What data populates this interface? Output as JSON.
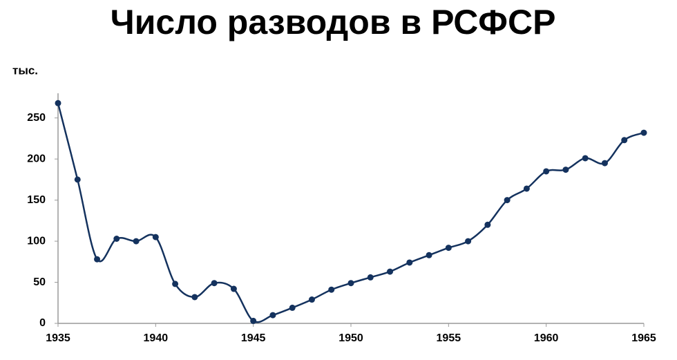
{
  "chart_data": {
    "type": "line",
    "title": "Число разводов в РСФСР",
    "y_label": "тыс.",
    "x": [
      1935,
      1936,
      1937,
      1938,
      1939,
      1940,
      1941,
      1942,
      1943,
      1944,
      1945,
      1946,
      1947,
      1948,
      1949,
      1950,
      1951,
      1952,
      1953,
      1954,
      1955,
      1956,
      1957,
      1958,
      1959,
      1960,
      1961,
      1962,
      1963,
      1964,
      1965
    ],
    "series": [
      {
        "name": "Число разводов",
        "color": "#14325e",
        "values": [
          268,
          175,
          78,
          103,
          100,
          105,
          48,
          32,
          49,
          42,
          3,
          10,
          19,
          29,
          41,
          49,
          56,
          63,
          74,
          83,
          92,
          100,
          120,
          150,
          164,
          185,
          187,
          201,
          195,
          223,
          232
        ]
      }
    ],
    "xlim": [
      1935,
      1965
    ],
    "xticks": [
      1935,
      1940,
      1945,
      1950,
      1955,
      1960,
      1965
    ],
    "ylim": [
      0,
      280
    ],
    "yticks": [
      0,
      50,
      100,
      150,
      200,
      250
    ],
    "smooth": true,
    "markers": true
  }
}
